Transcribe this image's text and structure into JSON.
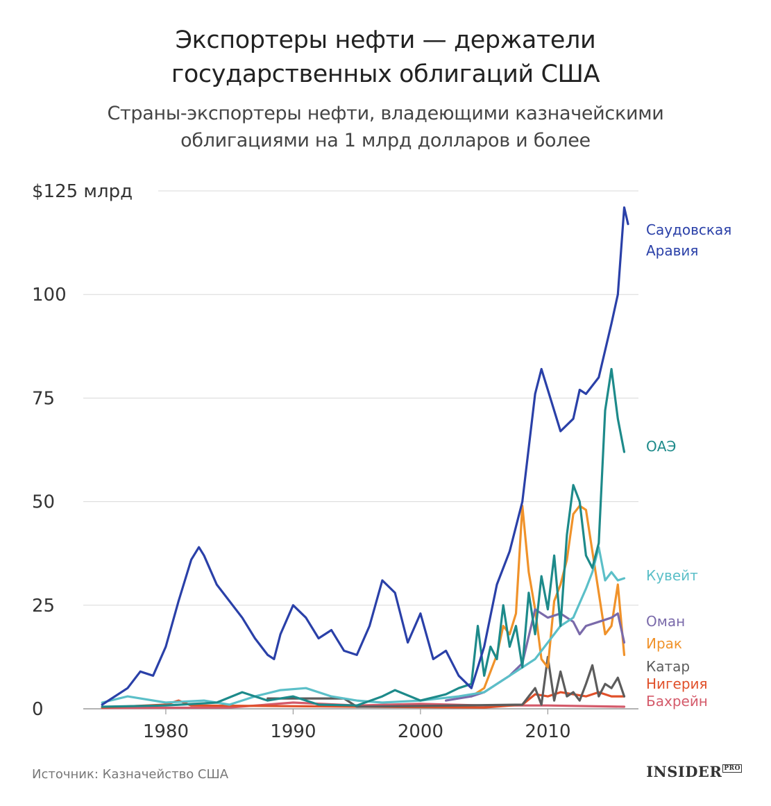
{
  "header": {
    "title_line1": "Экспортеры нефти — держатели",
    "title_line2": "государственных облигаций США",
    "subtitle_line1": "Страны-экспортеры нефти, владеющими казначейскими",
    "subtitle_line2": "облигациями на 1 млрд долларов и более"
  },
  "footer": {
    "source": "Источник: Казначейство США",
    "logo": "INSIDER",
    "logo_badge": "PRO"
  },
  "chart_data": {
    "type": "line",
    "title": "Экспортеры нефти — держатели государственных облигаций США",
    "subtitle": "Страны-экспортеры нефти, владеющими казначейскими облигациями на 1 млрд долларов и более",
    "xlabel": "",
    "ylabel": "млрд долларов",
    "xlim": [
      1974.5,
      2016.3
    ],
    "ylim": [
      0,
      125
    ],
    "y_ticks": [
      {
        "value": 0,
        "label": "0"
      },
      {
        "value": 25,
        "label": "25"
      },
      {
        "value": 50,
        "label": "50"
      },
      {
        "value": 75,
        "label": "75"
      },
      {
        "value": 100,
        "label": "100"
      },
      {
        "value": 125,
        "label": "$125 млрд"
      }
    ],
    "x_ticks": [
      {
        "value": 1980,
        "label": "1980"
      },
      {
        "value": 1990,
        "label": "1990"
      },
      {
        "value": 2000,
        "label": "2000"
      },
      {
        "value": 2010,
        "label": "2010"
      }
    ],
    "grid": "horizontal",
    "legend": "direct labels at right end of lines",
    "series": [
      {
        "name": "Бахрейн",
        "label_lines": [
          "Бахрейн"
        ],
        "color": "#d45a6a",
        "points": [
          [
            1975,
            0.2
          ],
          [
            1985,
            0.3
          ],
          [
            1990,
            1.5
          ],
          [
            1995,
            0.8
          ],
          [
            2000,
            1.2
          ],
          [
            2005,
            0.8
          ],
          [
            2010,
            0.8
          ],
          [
            2016,
            0.5
          ]
        ]
      },
      {
        "name": "Нигерия",
        "label_lines": [
          "Нигерия"
        ],
        "color": "#e0502a",
        "points": [
          [
            1975,
            0.3
          ],
          [
            1980,
            1.0
          ],
          [
            1981,
            2.0
          ],
          [
            1982,
            0.8
          ],
          [
            2005,
            0.3
          ],
          [
            2008,
            1.0
          ],
          [
            2009,
            3.5
          ],
          [
            2010,
            3.0
          ],
          [
            2011,
            4.0
          ],
          [
            2012,
            3.5
          ],
          [
            2013,
            3.0
          ],
          [
            2014,
            4.0
          ],
          [
            2015,
            3.0
          ],
          [
            2016,
            3.0
          ]
        ]
      },
      {
        "name": "Катар",
        "label_lines": [
          "Катар"
        ],
        "color": "#5c5c5c",
        "points": [
          [
            1988,
            2.5
          ],
          [
            1994,
            2.5
          ],
          [
            1995,
            0.5
          ],
          [
            2008,
            1.0
          ],
          [
            2009,
            5.0
          ],
          [
            2009.5,
            1.0
          ],
          [
            2010,
            12.5
          ],
          [
            2010.5,
            2.0
          ],
          [
            2011,
            9.0
          ],
          [
            2011.5,
            3.0
          ],
          [
            2012,
            4.0
          ],
          [
            2012.5,
            2.0
          ],
          [
            2013,
            6.0
          ],
          [
            2013.5,
            10.5
          ],
          [
            2014,
            3.0
          ],
          [
            2014.5,
            6.0
          ],
          [
            2015,
            5.0
          ],
          [
            2015.5,
            7.5
          ],
          [
            2016,
            3.0
          ]
        ]
      },
      {
        "name": "Ирак",
        "label_lines": [
          "Ирак"
        ],
        "color": "#f0922a",
        "points": [
          [
            2004,
            3
          ],
          [
            2005,
            5
          ],
          [
            2006,
            13
          ],
          [
            2006.5,
            20
          ],
          [
            2007,
            18
          ],
          [
            2007.5,
            23
          ],
          [
            2008,
            49
          ],
          [
            2008.5,
            33
          ],
          [
            2009,
            24
          ],
          [
            2009.5,
            12
          ],
          [
            2010,
            10
          ],
          [
            2010.5,
            26
          ],
          [
            2011,
            30
          ],
          [
            2011.5,
            36
          ],
          [
            2012,
            47
          ],
          [
            2012.5,
            49
          ],
          [
            2013,
            48
          ],
          [
            2013.5,
            38
          ],
          [
            2014,
            28
          ],
          [
            2014.5,
            18
          ],
          [
            2015,
            20
          ],
          [
            2015.5,
            30
          ],
          [
            2016,
            13
          ]
        ]
      },
      {
        "name": "Оман",
        "label_lines": [
          "Оман"
        ],
        "color": "#7a6aaa",
        "points": [
          [
            2002,
            2
          ],
          [
            2004,
            3
          ],
          [
            2005,
            4
          ],
          [
            2006,
            6
          ],
          [
            2007,
            8
          ],
          [
            2008,
            11
          ],
          [
            2009,
            24
          ],
          [
            2010,
            22
          ],
          [
            2011,
            23
          ],
          [
            2012,
            21
          ],
          [
            2012.5,
            18
          ],
          [
            2013,
            20
          ],
          [
            2014,
            21
          ],
          [
            2015,
            22
          ],
          [
            2015.5,
            23
          ],
          [
            2016,
            16
          ]
        ]
      },
      {
        "name": "Кувейт",
        "label_lines": [
          "Кувейт"
        ],
        "color": "#5bbfc8",
        "points": [
          [
            1975,
            1.5
          ],
          [
            1977,
            3.0
          ],
          [
            1980,
            1.5
          ],
          [
            1983,
            2.0
          ],
          [
            1985,
            1.0
          ],
          [
            1987,
            3.0
          ],
          [
            1989,
            4.5
          ],
          [
            1991,
            5.0
          ],
          [
            1993,
            3.0
          ],
          [
            1995,
            2.0
          ],
          [
            1997,
            1.5
          ],
          [
            2000,
            2.0
          ],
          [
            2003,
            3.0
          ],
          [
            2005,
            4.0
          ],
          [
            2007,
            8.0
          ],
          [
            2009,
            12.0
          ],
          [
            2010,
            16.0
          ],
          [
            2011,
            20.0
          ],
          [
            2012,
            22.0
          ],
          [
            2013,
            29.0
          ],
          [
            2013.5,
            33.0
          ],
          [
            2014,
            39.0
          ],
          [
            2014.5,
            31.0
          ],
          [
            2015,
            33.0
          ],
          [
            2015.5,
            31.0
          ],
          [
            2016,
            31.5
          ]
        ]
      },
      {
        "name": "ОАЭ",
        "label_lines": [
          "ОАЭ"
        ],
        "color": "#1d8a8a",
        "points": [
          [
            1975,
            0.5
          ],
          [
            1980,
            0.8
          ],
          [
            1984,
            1.5
          ],
          [
            1986,
            4.0
          ],
          [
            1988,
            2.0
          ],
          [
            1990,
            3.0
          ],
          [
            1992,
            1.0
          ],
          [
            1995,
            0.8
          ],
          [
            1997,
            3.0
          ],
          [
            1998,
            4.5
          ],
          [
            2000,
            2.0
          ],
          [
            2002,
            3.5
          ],
          [
            2003,
            5.0
          ],
          [
            2004,
            6.0
          ],
          [
            2004.5,
            20.0
          ],
          [
            2005,
            8.0
          ],
          [
            2005.5,
            15.0
          ],
          [
            2006,
            12.0
          ],
          [
            2006.5,
            25.0
          ],
          [
            2007,
            15.0
          ],
          [
            2007.5,
            20.0
          ],
          [
            2008,
            10.0
          ],
          [
            2008.5,
            28.0
          ],
          [
            2009,
            18.0
          ],
          [
            2009.5,
            32.0
          ],
          [
            2010,
            24.0
          ],
          [
            2010.5,
            37.0
          ],
          [
            2011,
            20.0
          ],
          [
            2011.5,
            42.0
          ],
          [
            2012,
            54.0
          ],
          [
            2012.5,
            50.0
          ],
          [
            2013,
            37.0
          ],
          [
            2013.5,
            34.0
          ],
          [
            2014,
            40.0
          ],
          [
            2014.5,
            72.0
          ],
          [
            2015,
            82.0
          ],
          [
            2015.5,
            70.0
          ],
          [
            2016,
            62.0
          ]
        ]
      },
      {
        "name": "Саудовская Аравия",
        "label_lines": [
          "Саудовская",
          "Аравия"
        ],
        "color": "#2a40a8",
        "points": [
          [
            1975,
            1
          ],
          [
            1977,
            5
          ],
          [
            1978,
            9
          ],
          [
            1979,
            8
          ],
          [
            1980,
            15
          ],
          [
            1981,
            26
          ],
          [
            1982,
            36
          ],
          [
            1982.6,
            39
          ],
          [
            1983,
            37
          ],
          [
            1984,
            30
          ],
          [
            1986,
            22
          ],
          [
            1987,
            17
          ],
          [
            1988,
            13
          ],
          [
            1988.5,
            12
          ],
          [
            1989,
            18
          ],
          [
            1990,
            25
          ],
          [
            1991,
            22
          ],
          [
            1992,
            17
          ],
          [
            1993,
            19
          ],
          [
            1994,
            14
          ],
          [
            1995,
            13
          ],
          [
            1996,
            20
          ],
          [
            1997,
            31
          ],
          [
            1998,
            28
          ],
          [
            1999,
            16
          ],
          [
            2000,
            23
          ],
          [
            2001,
            12
          ],
          [
            2002,
            14
          ],
          [
            2003,
            8
          ],
          [
            2004,
            5
          ],
          [
            2005,
            15
          ],
          [
            2006,
            30
          ],
          [
            2007,
            38
          ],
          [
            2008,
            50
          ],
          [
            2009,
            76
          ],
          [
            2009.5,
            82
          ],
          [
            2010,
            77
          ],
          [
            2011,
            67
          ],
          [
            2012,
            70
          ],
          [
            2012.5,
            77
          ],
          [
            2013,
            76
          ],
          [
            2014,
            80
          ],
          [
            2015,
            93
          ],
          [
            2015.5,
            100
          ],
          [
            2016,
            121
          ],
          [
            2016.3,
            117
          ]
        ]
      }
    ]
  }
}
